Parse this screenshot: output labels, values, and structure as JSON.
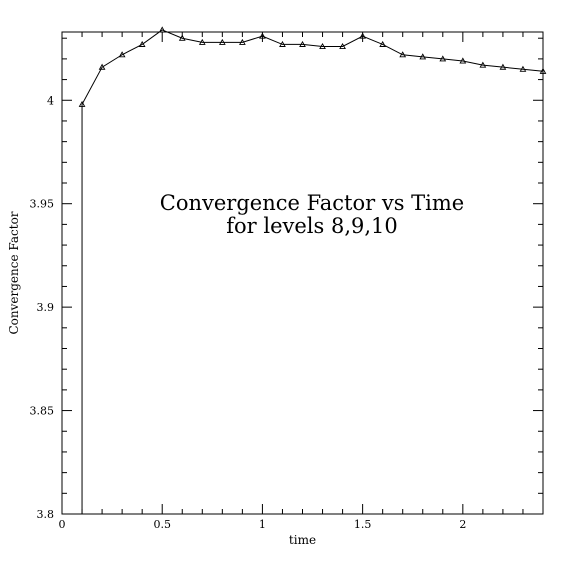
{
  "chart_data": {
    "type": "line",
    "title_lines": [
      "Convergence Factor vs Time",
      "for levels 8,9,10"
    ],
    "xlabel": "time",
    "ylabel": "Convergence Factor",
    "xlim": [
      0,
      2.4
    ],
    "ylim": [
      3.8,
      4.033
    ],
    "x_ticks": [
      0,
      0.5,
      1,
      1.5,
      2
    ],
    "x_tick_labels": [
      "0",
      "0.5",
      "1",
      "1.5",
      "2"
    ],
    "y_ticks": [
      3.8,
      3.85,
      3.9,
      3.95,
      4.0
    ],
    "y_tick_labels": [
      "3.8",
      "3.85",
      "3.9",
      "3.95",
      "4"
    ],
    "grid": false,
    "series": [
      {
        "x": [
          0.1,
          0.1,
          0.2,
          0.3,
          0.4,
          0.5,
          0.6,
          0.7,
          0.8,
          0.9,
          1.0,
          1.1,
          1.2,
          1.3,
          1.4,
          1.5,
          1.6,
          1.7,
          1.8,
          1.9,
          2.0,
          2.1,
          2.2,
          2.3,
          2.4
        ],
        "y": [
          3.8,
          3.998,
          4.016,
          4.022,
          4.027,
          4.034,
          4.03,
          4.028,
          4.028,
          4.028,
          4.031,
          4.027,
          4.027,
          4.026,
          4.026,
          4.031,
          4.027,
          4.022,
          4.021,
          4.02,
          4.019,
          4.017,
          4.016,
          4.015,
          4.014
        ],
        "marker": "triangle",
        "color": "#000000"
      }
    ]
  }
}
